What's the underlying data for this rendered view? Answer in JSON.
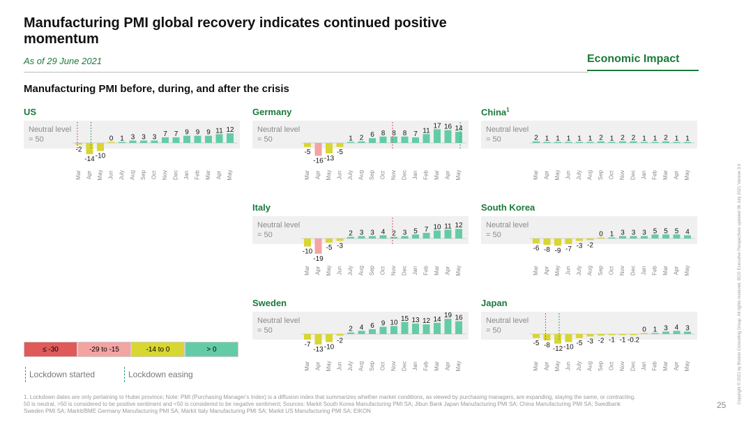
{
  "header": {
    "title": "Manufacturing PMI global recovery indicates continued positive momentum",
    "as_of": "As of 29 June 2021",
    "section": "Economic Impact",
    "subtitle": "Manufacturing PMI before, during, and after the crisis"
  },
  "neutral_label": "Neutral level = 50",
  "colors": {
    "bin1": "#e05a5a",
    "bin2": "#f4a3a3",
    "bin3": "#d8d630",
    "bin4": "#63cca6",
    "lockdown_started": "#d94b63",
    "lockdown_easing": "#2e9e72",
    "title_green": "#1a7a3a"
  },
  "legend": {
    "bins": [
      "≤ -30",
      "-29 to -15",
      "-14 to 0",
      "> 0"
    ],
    "lockdown_started": "Lockdown started",
    "lockdown_easing": "Lockdown easing"
  },
  "chart_data": [
    {
      "type": "bar",
      "name": "US",
      "categories": [
        "Mar",
        "Apr",
        "May",
        "Jun",
        "July",
        "Aug",
        "Sep",
        "Oct",
        "Nov",
        "Dec",
        "Jan",
        "Feb",
        "Mar",
        "Apr",
        "May"
      ],
      "values": [
        -2,
        -14,
        -10,
        0,
        1,
        3,
        3,
        3,
        7,
        7,
        9,
        9,
        9,
        11,
        12
      ],
      "lockdown_started": "Mar",
      "lockdown_easing": "Apr"
    },
    {
      "type": "bar",
      "name": "Germany",
      "categories": [
        "Mar",
        "Apr",
        "May",
        "Jun",
        "July",
        "Aug",
        "Sep",
        "Oct",
        "Nov",
        "Dec",
        "Jan",
        "Feb",
        "Mar",
        "Apr",
        "May"
      ],
      "values": [
        -5,
        -16,
        -13,
        -5,
        1,
        2,
        6,
        8,
        8,
        8,
        7,
        11,
        17,
        16,
        14
      ],
      "lockdown_started": "Nov",
      "lockdown_easing": "May"
    },
    {
      "type": "bar",
      "name": "China",
      "footnote_mark": "1",
      "categories": [
        "Mar",
        "Apr",
        "May",
        "Jun",
        "July",
        "Aug",
        "Sep",
        "Oct",
        "Nov",
        "Dec",
        "Jan",
        "Feb",
        "Mar",
        "Apr",
        "May"
      ],
      "values": [
        2,
        1,
        1,
        1,
        1,
        1,
        2,
        1,
        2,
        2,
        1,
        1,
        2,
        1,
        1
      ]
    },
    {
      "type": "bar",
      "name": "Italy",
      "categories": [
        "Mar",
        "Apr",
        "May",
        "Jun",
        "July",
        "Aug",
        "Sep",
        "Oct",
        "Nov",
        "Dec",
        "Jan",
        "Feb",
        "Mar",
        "Apr",
        "May"
      ],
      "values": [
        -10,
        -19,
        -5,
        -3,
        2,
        3,
        3,
        4,
        2,
        3,
        5,
        7,
        10,
        11,
        12
      ],
      "lockdown_started": "Nov",
      "lockdown_easing": "Jun"
    },
    {
      "type": "bar",
      "name": "South Korea",
      "categories": [
        "Mar",
        "Apr",
        "May",
        "Jun",
        "July",
        "Aug",
        "Sep",
        "Oct",
        "Nov",
        "Dec",
        "Jan",
        "Feb",
        "Mar",
        "Apr",
        "May"
      ],
      "values": [
        -6,
        -8,
        -9,
        -7,
        -3,
        -2,
        0,
        1,
        3,
        3,
        3,
        5,
        5,
        5,
        4
      ]
    },
    {
      "type": "bar",
      "name": "Sweden",
      "categories": [
        "Mar",
        "Apr",
        "May",
        "Jun",
        "July",
        "Aug",
        "Sep",
        "Oct",
        "Nov",
        "Dec",
        "Jan",
        "Feb",
        "Mar",
        "Apr",
        "May"
      ],
      "values": [
        -7,
        -13,
        -10,
        -2,
        2,
        4,
        6,
        9,
        10,
        15,
        13,
        12,
        14,
        19,
        16
      ]
    },
    {
      "type": "bar",
      "name": "Japan",
      "categories": [
        "Mar",
        "Apr",
        "May",
        "Jun",
        "July",
        "Aug",
        "Sep",
        "Oct",
        "Nov",
        "Dec",
        "Jan",
        "Feb",
        "Mar",
        "Apr",
        "May"
      ],
      "values": [
        -5,
        -8,
        -12,
        -10,
        -5,
        -3,
        -2,
        -1,
        -1,
        -0.2,
        0,
        1,
        3,
        4,
        3
      ],
      "lockdown_started": "Apr",
      "lockdown_easing": "May"
    }
  ],
  "footnote": "1. Lockdown dates are only pertaining to Hubei province; Note: PMI (Purchasing Manager's Index) is a diffusion index that summarizes whether market conditions, as viewed by purchasing managers, are expanding, staying the same, or contracting. 50 is neutral, >50 is considered to be positive sentiment and <50 is considered to be negative sentiment; Sources: Markit South Korea Manufacturing PMI SA; Jibun Bank Japan Manufacturing PMI SA; China Manufacturing PMI SA; Swedbank Sweden PMI SA; Markit/BME Germany Manufacturing PMI SA; Markit Italy Manufacturing PMI SA; Markit US Manufacturing PMI SA; EIKON",
  "page_number": "25",
  "copyright": "Copyright © 2021 by Boston Consulting Group. All rights reserved. BCG Executive Perspectives updated 06 July 2021 Version 3.0"
}
